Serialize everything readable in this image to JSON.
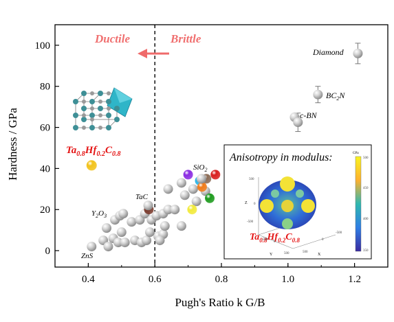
{
  "chart_data": {
    "type": "scatter",
    "title": "",
    "xlabel": "Pugh's Ratio k G/B",
    "ylabel": "Hardness / GPa",
    "xlim": [
      0.3,
      1.3
    ],
    "ylim": [
      -8,
      110
    ],
    "xticks": [
      0.4,
      0.6,
      0.8,
      1.0,
      1.2
    ],
    "yticks": [
      0,
      20,
      40,
      60,
      80,
      100
    ],
    "xtick_labels": [
      "0.4",
      "0.6",
      "0.8",
      "1.0",
      "1.2"
    ],
    "ytick_labels": [
      "0",
      "20",
      "40",
      "60",
      "80",
      "100"
    ],
    "grid": false,
    "threshold": {
      "x": 0.6,
      "style": "dashed",
      "left_label": "Ductile",
      "right_label": "Brittle"
    },
    "highlight_point": {
      "label": "Ta0.8Hf0.2C0.8",
      "x": 0.41,
      "y": 41.5,
      "color": "#f2c21a"
    },
    "labeled_points": [
      {
        "label": "Diamond",
        "x": 1.21,
        "y": 96,
        "err": 5
      },
      {
        "label": "BC2N",
        "x": 1.09,
        "y": 76,
        "err": 4
      },
      {
        "label": "c-BN",
        "x": 1.02,
        "y": 65
      },
      {
        "label": "",
        "x": 1.03,
        "y": 62.5,
        "err": 4.5
      },
      {
        "label": "TaC",
        "x": 0.58,
        "y": 22
      },
      {
        "label": "SiO2",
        "x": 0.74,
        "y": 35
      },
      {
        "label": "Y2O3",
        "x": 0.455,
        "y": 11
      },
      {
        "label": "ZnS",
        "x": 0.41,
        "y": 2
      }
    ],
    "colored_points": [
      {
        "x": 0.7,
        "y": 37,
        "color": "#8a2be2"
      },
      {
        "x": 0.735,
        "y": 34,
        "color": "#29b6e8"
      },
      {
        "x": 0.755,
        "y": 35,
        "color": "#8a6a55"
      },
      {
        "x": 0.782,
        "y": 37,
        "color": "#d81e1e"
      },
      {
        "x": 0.742,
        "y": 31,
        "color": "#f07a18"
      },
      {
        "x": 0.582,
        "y": 20,
        "color": "#7a3a2c"
      },
      {
        "x": 0.712,
        "y": 20,
        "color": "#f2ea3a"
      },
      {
        "x": 0.765,
        "y": 25.5,
        "color": "#1c9a1c"
      }
    ],
    "gray_points": [
      {
        "x": 0.445,
        "y": 5
      },
      {
        "x": 0.46,
        "y": 2
      },
      {
        "x": 0.475,
        "y": 6
      },
      {
        "x": 0.49,
        "y": 4
      },
      {
        "x": 0.51,
        "y": 4
      },
      {
        "x": 0.54,
        "y": 5
      },
      {
        "x": 0.56,
        "y": 4
      },
      {
        "x": 0.575,
        "y": 5
      },
      {
        "x": 0.61,
        "y": 7
      },
      {
        "x": 0.625,
        "y": 8
      },
      {
        "x": 0.63,
        "y": 12
      },
      {
        "x": 0.615,
        "y": 5
      },
      {
        "x": 0.48,
        "y": 15
      },
      {
        "x": 0.495,
        "y": 17
      },
      {
        "x": 0.505,
        "y": 18
      },
      {
        "x": 0.53,
        "y": 14
      },
      {
        "x": 0.555,
        "y": 15
      },
      {
        "x": 0.57,
        "y": 18
      },
      {
        "x": 0.59,
        "y": 15
      },
      {
        "x": 0.605,
        "y": 17
      },
      {
        "x": 0.625,
        "y": 18
      },
      {
        "x": 0.64,
        "y": 20
      },
      {
        "x": 0.66,
        "y": 20
      },
      {
        "x": 0.68,
        "y": 12
      },
      {
        "x": 0.64,
        "y": 30
      },
      {
        "x": 0.68,
        "y": 33
      },
      {
        "x": 0.715,
        "y": 30
      },
      {
        "x": 0.752,
        "y": 29
      },
      {
        "x": 0.725,
        "y": 24
      },
      {
        "x": 0.69,
        "y": 27
      },
      {
        "x": 0.5,
        "y": 9
      },
      {
        "x": 0.585,
        "y": 9
      }
    ],
    "inset": {
      "title": "Anisotropy in modulus:",
      "label": "Ta0.8Hf0.2C0.8",
      "colorbar_unit": "GPa",
      "colorbar_ticks": [
        "500",
        "450",
        "400",
        "350"
      ]
    }
  },
  "text": {
    "ductile": "Ductile",
    "brittle": "Brittle",
    "highlight_main": "Ta",
    "highlight_sub1": "0.8",
    "highlight_mid": "Hf",
    "highlight_sub2": "0.2",
    "highlight_end": "C",
    "highlight_sub3": "0.8",
    "diamond": "Diamond",
    "bc2n_a": "BC",
    "bc2n_sub": "2",
    "bc2n_b": "N",
    "cbn": "c-BN",
    "tac": "TaC",
    "sio_a": "SiO",
    "sio_sub": "2",
    "y2o3_a": "Y",
    "y2o3_sub1": "2",
    "y2o3_b": "O",
    "y2o3_sub2": "3",
    "zns": "ZnS",
    "inset_axis_z": "Z",
    "inset_axis_y": "Y",
    "inset_axis_x": "X",
    "inset_ticks_left": [
      "500",
      "0",
      "-500"
    ],
    "inset_ticks_bottom": [
      "500",
      "0",
      "-500"
    ],
    "inset_ticks_right": [
      "0",
      "-500",
      "500"
    ]
  }
}
